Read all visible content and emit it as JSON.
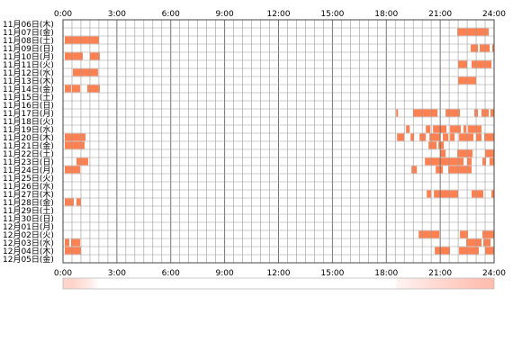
{
  "chart_data": {
    "type": "heatmap",
    "xlim": [
      0,
      24
    ],
    "x_tick_labels": [
      "0:00",
      "3:00",
      "6:00",
      "9:00",
      "12:00",
      "15:00",
      "18:00",
      "21:00",
      "24:00"
    ],
    "grid": true,
    "colors": {
      "bar": "#ff8050",
      "bar_light": "#ffb0a0",
      "grid": "#999999",
      "border": "#444444"
    },
    "rows": [
      {
        "label": "11月06日(木)",
        "segments": []
      },
      {
        "label": "11月07日(金)",
        "segments": [
          [
            21.95,
            23.7
          ]
        ]
      },
      {
        "label": "11月08日(土)",
        "segments": [
          [
            0.1,
            2.0
          ]
        ]
      },
      {
        "label": "11月09日(日)",
        "segments": [
          [
            22.7,
            23.1
          ],
          [
            23.2,
            23.75
          ],
          [
            23.9,
            24.0
          ]
        ]
      },
      {
        "label": "11月10日(月)",
        "segments": [
          [
            0.1,
            1.1
          ],
          [
            1.5,
            2.05
          ]
        ]
      },
      {
        "label": "11月11日(火)",
        "segments": [
          [
            22.0,
            22.5
          ],
          [
            22.75,
            23.85
          ]
        ]
      },
      {
        "label": "11月12日(水)",
        "segments": [
          [
            0.55,
            1.95
          ]
        ]
      },
      {
        "label": "11月13日(木)",
        "segments": [
          [
            22.0,
            23.0
          ]
        ]
      },
      {
        "label": "11月14日(金)",
        "segments": [
          [
            0.1,
            0.45
          ],
          [
            0.5,
            0.95
          ],
          [
            1.35,
            2.05
          ]
        ]
      },
      {
        "label": "11月15日(土)",
        "segments": []
      },
      {
        "label": "11月16日(日)",
        "segments": []
      },
      {
        "label": "11月17日(月)",
        "segments": [
          [
            18.55,
            18.65
          ],
          [
            19.5,
            20.85
          ],
          [
            21.3,
            22.1
          ],
          [
            22.9,
            23.1
          ],
          [
            23.3,
            23.7
          ],
          [
            23.8,
            24.0
          ]
        ]
      },
      {
        "label": "11月18日(火)",
        "segments": []
      },
      {
        "label": "11月19日(水)",
        "segments": [
          [
            19.1,
            19.3
          ],
          [
            20.2,
            20.45
          ],
          [
            20.6,
            21.35
          ],
          [
            21.55,
            22.15
          ],
          [
            22.3,
            22.45
          ],
          [
            22.55,
            23.3
          ]
        ]
      },
      {
        "label": "11月20日(木)",
        "segments": [
          [
            0.1,
            1.25
          ],
          [
            18.6,
            19.0
          ],
          [
            19.35,
            19.55
          ],
          [
            19.85,
            20.2
          ],
          [
            20.4,
            21.0
          ],
          [
            21.15,
            21.45
          ],
          [
            21.55,
            21.8
          ],
          [
            22.05,
            22.85
          ],
          [
            23.0,
            23.3
          ],
          [
            23.45,
            24.0
          ]
        ]
      },
      {
        "label": "11月21日(金)",
        "segments": [
          [
            0.1,
            1.2
          ],
          [
            20.35,
            20.8
          ],
          [
            20.9,
            21.2
          ]
        ]
      },
      {
        "label": "11月22日(土)",
        "segments": [
          [
            21.0,
            21.3
          ],
          [
            21.95,
            22.8
          ],
          [
            23.5,
            24.0
          ]
        ]
      },
      {
        "label": "11月23日(日)",
        "segments": [
          [
            0.75,
            1.4
          ],
          [
            20.15,
            22.3
          ],
          [
            22.5,
            22.75
          ],
          [
            23.35,
            23.55
          ],
          [
            23.75,
            24.0
          ]
        ]
      },
      {
        "label": "11月24日(月)",
        "segments": [
          [
            0.1,
            0.95
          ],
          [
            19.4,
            19.7
          ],
          [
            20.75,
            21.15
          ],
          [
            21.45,
            22.75
          ]
        ]
      },
      {
        "label": "11月25日(火)",
        "segments": []
      },
      {
        "label": "11月26日(水)",
        "segments": []
      },
      {
        "label": "11月27日(木)",
        "segments": [
          [
            20.25,
            20.5
          ],
          [
            20.65,
            22.0
          ],
          [
            22.75,
            23.4
          ],
          [
            23.85,
            24.0
          ]
        ]
      },
      {
        "label": "11月28日(金)",
        "segments": [
          [
            0.1,
            0.6
          ],
          [
            0.75,
            1.0
          ]
        ]
      },
      {
        "label": "11月29日(土)",
        "segments": []
      },
      {
        "label": "11月30日(日)",
        "segments": []
      },
      {
        "label": "12月01日(月)",
        "segments": []
      },
      {
        "label": "12月02日(火)",
        "segments": [
          [
            19.8,
            20.95
          ],
          [
            22.1,
            22.55
          ],
          [
            23.35,
            24.0
          ]
        ]
      },
      {
        "label": "12月03日(水)",
        "segments": [
          [
            0.1,
            0.35
          ],
          [
            0.45,
            0.95
          ],
          [
            22.45,
            23.3
          ],
          [
            23.4,
            23.8
          ]
        ]
      },
      {
        "label": "12月04日(木)",
        "segments": [
          [
            0.1,
            1.0
          ],
          [
            20.7,
            21.55
          ],
          [
            22.05,
            23.15
          ],
          [
            23.5,
            24.0
          ]
        ]
      },
      {
        "label": "12月05日(金)",
        "segments": []
      }
    ],
    "summary_strip": {
      "stops": [
        [
          0.0,
          0.55
        ],
        [
          0.5,
          0.55
        ],
        [
          1.0,
          0.4
        ],
        [
          1.5,
          0.25
        ],
        [
          2.0,
          0.0
        ],
        [
          18.5,
          0.0
        ],
        [
          18.6,
          0.15
        ],
        [
          19.3,
          0.25
        ],
        [
          20.0,
          0.35
        ],
        [
          20.5,
          0.45
        ],
        [
          21.0,
          0.5
        ],
        [
          21.7,
          0.6
        ],
        [
          22.2,
          0.65
        ],
        [
          22.8,
          0.75
        ],
        [
          23.4,
          0.8
        ],
        [
          24.0,
          0.85
        ]
      ]
    }
  }
}
